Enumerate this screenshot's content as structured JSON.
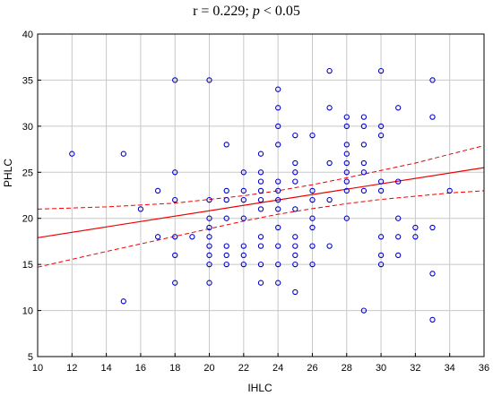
{
  "chart_data": {
    "type": "scatter",
    "title_prefix": "r = 0.229; ",
    "title_p": "p",
    "title_suffix": " < 0.05",
    "xlabel": "IHLC",
    "ylabel": "PHLC",
    "xlim": [
      10,
      36
    ],
    "ylim": [
      5,
      40
    ],
    "xticks": [
      10,
      12,
      14,
      16,
      18,
      20,
      22,
      24,
      26,
      28,
      30,
      32,
      34,
      36
    ],
    "yticks": [
      5,
      10,
      15,
      20,
      25,
      30,
      35,
      40
    ],
    "grid": true,
    "colors": {
      "points": "#0000cc",
      "fit": "#ee0000",
      "grid": "#c8c8c8",
      "frame": "#000000"
    },
    "points": [
      [
        12,
        27
      ],
      [
        15,
        27
      ],
      [
        15,
        11
      ],
      [
        16,
        21
      ],
      [
        17,
        23
      ],
      [
        17,
        18
      ],
      [
        18,
        35
      ],
      [
        18,
        25
      ],
      [
        18,
        22
      ],
      [
        18,
        18
      ],
      [
        18,
        16
      ],
      [
        18,
        13
      ],
      [
        19,
        18
      ],
      [
        20,
        35
      ],
      [
        20,
        22
      ],
      [
        20,
        20
      ],
      [
        20,
        19
      ],
      [
        20,
        18
      ],
      [
        20,
        17
      ],
      [
        20,
        16
      ],
      [
        20,
        15
      ],
      [
        20,
        13
      ],
      [
        21,
        28
      ],
      [
        21,
        23
      ],
      [
        21,
        22
      ],
      [
        21,
        20
      ],
      [
        21,
        17
      ],
      [
        21,
        16
      ],
      [
        21,
        15
      ],
      [
        22,
        25
      ],
      [
        22,
        23
      ],
      [
        22,
        22
      ],
      [
        22,
        20
      ],
      [
        22,
        17
      ],
      [
        22,
        16
      ],
      [
        22,
        15
      ],
      [
        23,
        27
      ],
      [
        23,
        25
      ],
      [
        23,
        24
      ],
      [
        23,
        23
      ],
      [
        23,
        22
      ],
      [
        23,
        21
      ],
      [
        23,
        18
      ],
      [
        23,
        17
      ],
      [
        23,
        15
      ],
      [
        23,
        13
      ],
      [
        24,
        34
      ],
      [
        24,
        32
      ],
      [
        24,
        30
      ],
      [
        24,
        28
      ],
      [
        24,
        24
      ],
      [
        24,
        23
      ],
      [
        24,
        22
      ],
      [
        24,
        21
      ],
      [
        24,
        19
      ],
      [
        24,
        17
      ],
      [
        24,
        15
      ],
      [
        24,
        13
      ],
      [
        25,
        29
      ],
      [
        25,
        26
      ],
      [
        25,
        25
      ],
      [
        25,
        24
      ],
      [
        25,
        21
      ],
      [
        25,
        18
      ],
      [
        25,
        17
      ],
      [
        25,
        16
      ],
      [
        25,
        15
      ],
      [
        25,
        12
      ],
      [
        26,
        29
      ],
      [
        26,
        23
      ],
      [
        26,
        22
      ],
      [
        26,
        20
      ],
      [
        26,
        19
      ],
      [
        26,
        17
      ],
      [
        26,
        15
      ],
      [
        27,
        36
      ],
      [
        27,
        32
      ],
      [
        27,
        26
      ],
      [
        27,
        22
      ],
      [
        27,
        17
      ],
      [
        28,
        31
      ],
      [
        28,
        30
      ],
      [
        28,
        28
      ],
      [
        28,
        27
      ],
      [
        28,
        26
      ],
      [
        28,
        25
      ],
      [
        28,
        24
      ],
      [
        28,
        23
      ],
      [
        28,
        20
      ],
      [
        29,
        31
      ],
      [
        29,
        30
      ],
      [
        29,
        28
      ],
      [
        29,
        26
      ],
      [
        29,
        25
      ],
      [
        29,
        23
      ],
      [
        29,
        10
      ],
      [
        30,
        36
      ],
      [
        30,
        30
      ],
      [
        30,
        29
      ],
      [
        30,
        24
      ],
      [
        30,
        23
      ],
      [
        30,
        18
      ],
      [
        30,
        16
      ],
      [
        30,
        15
      ],
      [
        31,
        32
      ],
      [
        31,
        24
      ],
      [
        31,
        20
      ],
      [
        31,
        18
      ],
      [
        31,
        16
      ],
      [
        32,
        19
      ],
      [
        32,
        18
      ],
      [
        33,
        35
      ],
      [
        33,
        31
      ],
      [
        33,
        19
      ],
      [
        33,
        14
      ],
      [
        33,
        9
      ],
      [
        34,
        23
      ]
    ],
    "fit_line": {
      "x": [
        10,
        36
      ],
      "y": [
        17.9,
        25.5
      ]
    },
    "ci_upper": {
      "x": [
        10,
        14,
        18,
        22,
        24,
        26,
        28,
        30,
        32,
        34,
        36
      ],
      "y": [
        21.0,
        21.25,
        21.65,
        22.45,
        23.0,
        23.65,
        24.4,
        25.2,
        26.0,
        26.95,
        27.9
      ]
    },
    "ci_lower": {
      "x": [
        10,
        14,
        18,
        22,
        24,
        26,
        28,
        30,
        32,
        34,
        36
      ],
      "y": [
        14.7,
        16.4,
        18.05,
        19.7,
        20.45,
        21.05,
        21.6,
        22.05,
        22.4,
        22.75,
        23.0
      ]
    }
  }
}
